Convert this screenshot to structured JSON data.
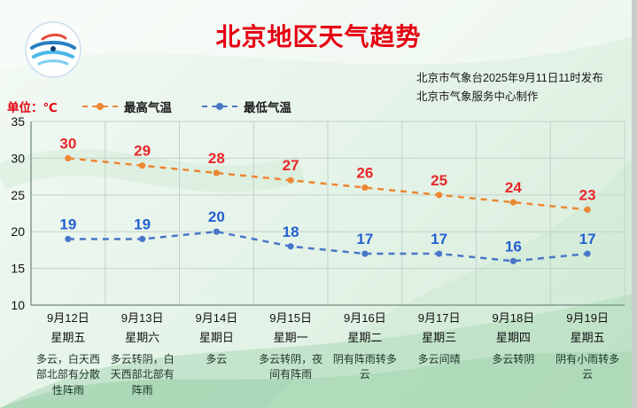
{
  "title": "北京地区天气趋势",
  "publisher": {
    "line1": "北京市气象台2025年9月11日11时发布",
    "line2": "北京市气象服务中心制作"
  },
  "unit_label": "单位：℃",
  "colors": {
    "title": "#e60012",
    "high_line": "#ed8733",
    "high_label": "#e8262a",
    "low_line": "#4a76c8",
    "low_label": "#2460cf",
    "grid": "#c3d2c8",
    "axis": "#84998d",
    "tick_text": "#111111"
  },
  "chart_data": {
    "type": "line",
    "categories": [
      "9月12日",
      "9月13日",
      "9月14日",
      "9月15日",
      "9月16日",
      "9月17日",
      "9月18日",
      "9月19日"
    ],
    "weekdays": [
      "星期五",
      "星期六",
      "星期日",
      "星期一",
      "星期二",
      "星期三",
      "星期四",
      "星期五"
    ],
    "weather": [
      "多云，白天西部北部有分散性阵雨",
      "多云转阴，白天西部北部有阵雨",
      "多云",
      "多云转阴，夜间有阵雨",
      "阴有阵雨转多云",
      "多云间晴",
      "多云转阴",
      "阴有小雨转多云"
    ],
    "series": [
      {
        "name": "最高气温",
        "values": [
          30,
          29,
          28,
          27,
          26,
          25,
          24,
          23
        ],
        "color": "#ed8733",
        "label_color": "#e8262a"
      },
      {
        "name": "最低气温",
        "values": [
          19,
          19,
          20,
          18,
          17,
          17,
          16,
          17
        ],
        "color": "#4a76c8",
        "label_color": "#2460cf"
      }
    ],
    "ylim": [
      10,
      35
    ],
    "yticks": [
      35,
      30,
      25,
      20,
      15,
      10
    ],
    "grid": true,
    "legend_position": "top"
  }
}
